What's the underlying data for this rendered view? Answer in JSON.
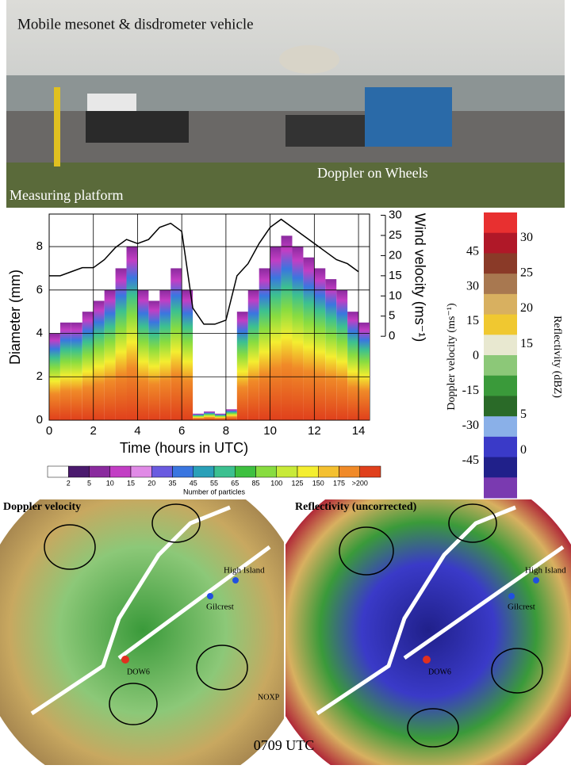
{
  "photo": {
    "title": "Mobile mesonet & disdrometer vehicle",
    "dow_label": "Doppler on Wheels",
    "platform_label": "Measuring platform"
  },
  "chart_data": {
    "type": "line",
    "x": [
      0,
      0.5,
      1,
      1.5,
      2,
      2.5,
      3,
      3.5,
      4,
      4.5,
      5,
      5.5,
      6,
      6.5,
      7,
      7.5,
      8,
      8.5,
      9,
      9.5,
      10,
      10.5,
      11,
      11.5,
      12,
      12.5,
      13,
      13.5,
      14
    ],
    "xlim": [
      0,
      14.5
    ],
    "xticks": [
      0,
      2,
      4,
      6,
      8,
      10,
      12,
      14
    ],
    "xlabel": "Time (hours in UTC)",
    "ylabel": "Diameter (mm)",
    "ylim": [
      0,
      9.5
    ],
    "yticks": [
      0,
      2,
      4,
      6,
      8
    ],
    "y2label": "Wind velocity (ms⁻¹)",
    "y2lim": [
      -20.8,
      30.3
    ],
    "y2ticks": [
      0,
      5,
      10,
      15,
      20,
      25,
      30
    ],
    "grid": true,
    "series": [
      {
        "color": "#000000",
        "axis": "y2",
        "values": [
          15,
          15,
          16,
          17,
          17,
          19,
          22,
          24,
          23,
          24,
          27,
          28,
          26,
          7,
          3,
          3,
          4,
          15,
          18,
          23,
          27,
          29,
          27,
          25,
          23,
          21,
          19,
          18,
          16
        ]
      }
    ],
    "heat": {
      "values": [
        4,
        4.5,
        4.5,
        5,
        5.5,
        6,
        7,
        8,
        6,
        5.5,
        6,
        7,
        6,
        0.3,
        0.4,
        0.3,
        0.5,
        5,
        6,
        7,
        8,
        8.5,
        8,
        7.5,
        7,
        6.5,
        6,
        5,
        4.5
      ]
    }
  },
  "particle_colorbar": {
    "label": "Number of particles",
    "ticks": [
      "2",
      "5",
      "10",
      "15",
      "20",
      "35",
      "45",
      "55",
      "65",
      "85",
      "100",
      "125",
      "150",
      "175",
      ">200"
    ],
    "colors": [
      "#ffffff",
      "#4b1a6e",
      "#8a2a9e",
      "#c23ec4",
      "#e08ae6",
      "#6a5be0",
      "#3a76e0",
      "#2aa0b8",
      "#3cc090",
      "#3ec040",
      "#88dc40",
      "#c8ea38",
      "#f4ee30",
      "#f4c030",
      "#f08a28",
      "#e0401c"
    ]
  },
  "radar_colorbar": {
    "left_label": "Doppler velocity (ms⁻¹)",
    "right_label": "Reflectivity (dBZ)",
    "doppler_lim": [
      -61,
      62
    ],
    "doppler_ticks": [
      45,
      30,
      15,
      0,
      -15,
      -30,
      -45
    ],
    "reflectivity_lim": [
      -6.7,
      33.6
    ],
    "reflectivity_ticks": [
      30,
      25,
      20,
      15,
      5,
      0
    ],
    "colors": [
      "#e83030",
      "#b01828",
      "#8a3a28",
      "#a87850",
      "#d8b060",
      "#f0c830",
      "#e8e8d0",
      "#8cc878",
      "#3a9a3a",
      "#2a6a28",
      "#8ab0e8",
      "#3a3ac8",
      "#20208a",
      "#7a3ab0"
    ]
  },
  "radar": {
    "left_title": "Doppler velocity",
    "right_title": "Reflectivity (uncorrected)",
    "time": "0709 UTC",
    "sites": {
      "high_island": "High Island",
      "gilcrest": "Gilcrest",
      "dow6": "DOW6",
      "noxp": "NOXP"
    }
  }
}
